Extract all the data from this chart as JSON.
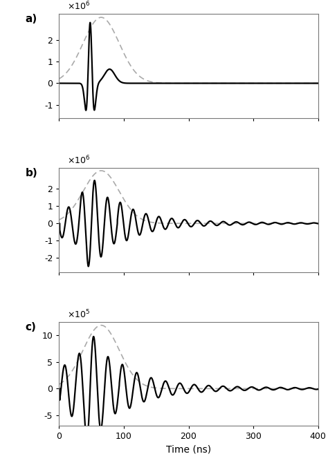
{
  "fig_width": 4.74,
  "fig_height": 6.7,
  "dpi": 100,
  "xlim": [
    0,
    400
  ],
  "xticks": [
    0,
    100,
    200,
    300,
    400
  ],
  "xlabel": "Time (ns)",
  "background_color": "#ffffff",
  "panel_configs": [
    {
      "label": "a",
      "scale_exp": "6",
      "ylim": [
        -1600000.0,
        3200000.0
      ],
      "yticks": [
        -1000000.0,
        0,
        1000000.0,
        2000000.0
      ],
      "yticklabels": [
        "-1",
        "0",
        "1",
        "2"
      ]
    },
    {
      "label": "b",
      "scale_exp": "6",
      "ylim": [
        -2800000.0,
        3200000.0
      ],
      "yticks": [
        -2000000.0,
        -1000000.0,
        0,
        1000000.0,
        2000000.0
      ],
      "yticklabels": [
        "-2",
        "-1",
        "0",
        "1",
        "2"
      ]
    },
    {
      "label": "c",
      "scale_exp": "5",
      "ylim": [
        -700000.0,
        1250000.0
      ],
      "yticks": [
        -500000.0,
        0,
        500000.0,
        1000000.0
      ],
      "yticklabels": [
        "-5",
        "0",
        "5",
        "10"
      ]
    }
  ],
  "solid_color": "#000000",
  "dashed_color": "#aaaaaa",
  "solid_lw": 1.6,
  "dashed_lw": 1.2
}
